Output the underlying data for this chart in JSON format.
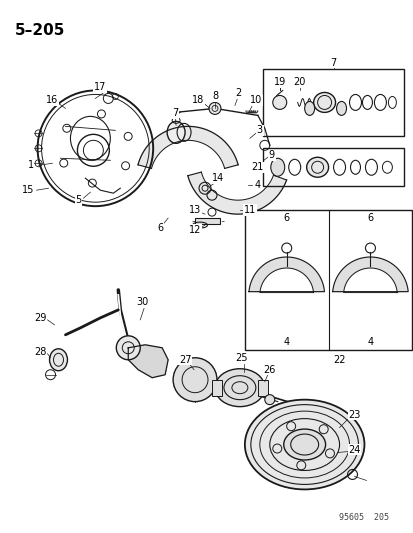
{
  "title": "5–205",
  "bg": "#ffffff",
  "lc": "#1a1a1a",
  "fw": 4.14,
  "fh": 5.33,
  "dpi": 100,
  "footer": "95605  205"
}
